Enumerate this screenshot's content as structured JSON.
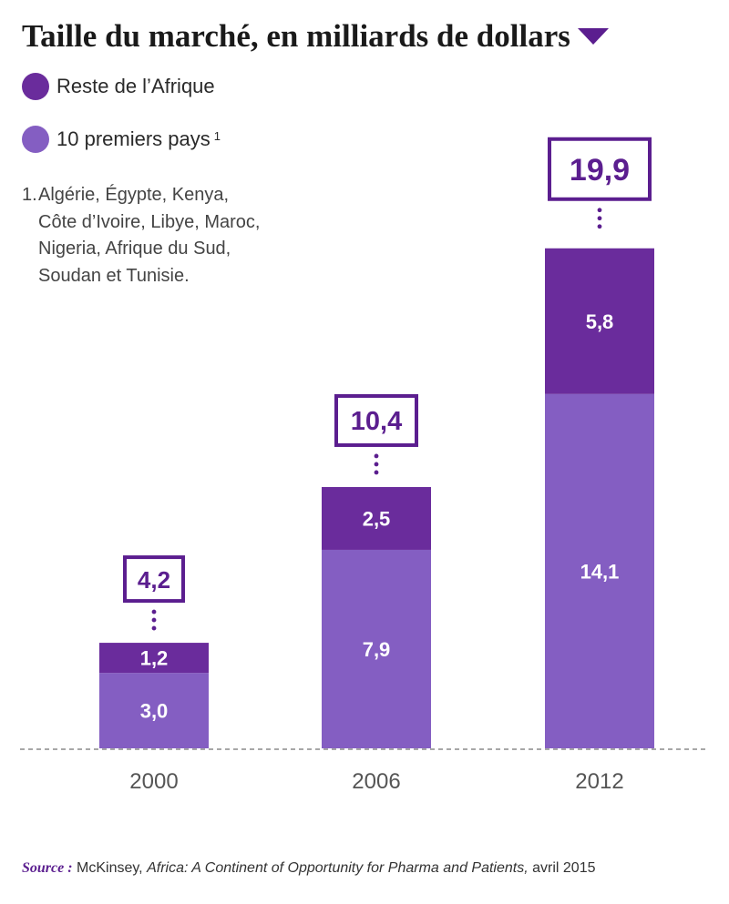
{
  "title": "Taille du marché, en milliards de dollars",
  "colors": {
    "accent": "#5b1e8f",
    "reste": "#6a2c9c",
    "top10": "#845ec2",
    "axis": "#8a8a8a"
  },
  "legend": [
    {
      "label": "Reste de l’Afrique",
      "color": "#6a2c9c",
      "sup": ""
    },
    {
      "label": "10 premiers pays",
      "color": "#845ec2",
      "sup": "1"
    }
  ],
  "footnote": {
    "number": "1.",
    "lines": [
      "Algérie, Égypte, Kenya,",
      "Côte d’Ivoire, Libye, Maroc,",
      "Nigeria, Afrique du Sud,",
      "Soudan et Tunisie."
    ]
  },
  "chart_data": {
    "type": "bar",
    "stacked": true,
    "categories": [
      "2000",
      "2006",
      "2012"
    ],
    "series": [
      {
        "name": "10 premiers pays",
        "values": [
          3.0,
          7.9,
          14.1
        ],
        "labels": [
          "3,0",
          "7,9",
          "14,1"
        ],
        "color": "#845ec2"
      },
      {
        "name": "Reste de l’Afrique",
        "values": [
          1.2,
          2.5,
          5.8
        ],
        "labels": [
          "1,2",
          "2,5",
          "5,8"
        ],
        "color": "#6a2c9c"
      }
    ],
    "totals": [
      4.2,
      10.4,
      19.9
    ],
    "total_labels": [
      "4,2",
      "10,4",
      "19,9"
    ],
    "title": "Taille du marché, en milliards de dollars"
  },
  "source": {
    "label": "Source :",
    "publisher": "McKinsey,",
    "work": "Africa: A Continent of Opportunity for Pharma and Patients,",
    "date": "avril 2015"
  }
}
